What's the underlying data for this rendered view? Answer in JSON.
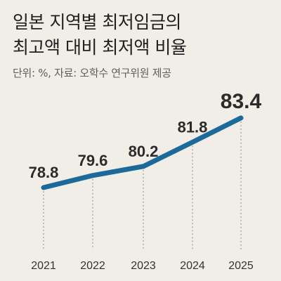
{
  "header": {
    "title_line1": "일본 지역별 최저임금의",
    "title_line2": "최고액 대비 최저액 비율",
    "subtitle": "단위: %, 자료: 오학수 연구위원 제공"
  },
  "colors": {
    "background": "#f1ede7",
    "line": "#1b6a99",
    "guide": "#8a8a8a",
    "text": "#2b2b2b"
  },
  "chart_data": {
    "type": "line",
    "title": "일본 지역별 최저임금의 최고액 대비 최저액 비율",
    "subtitle": "단위: %, 자료: 오학수 연구위원 제공",
    "categories": [
      "2021",
      "2022",
      "2023",
      "2024",
      "2025"
    ],
    "series": [
      {
        "values": [
          78.8,
          79.6,
          80.2,
          81.8,
          83.4
        ]
      }
    ],
    "ylim": [
      77.5,
      84
    ],
    "grid": false,
    "legend": "none",
    "data_labels": [
      "78.8",
      "79.6",
      "80.2",
      "81.8",
      "83.4"
    ]
  }
}
